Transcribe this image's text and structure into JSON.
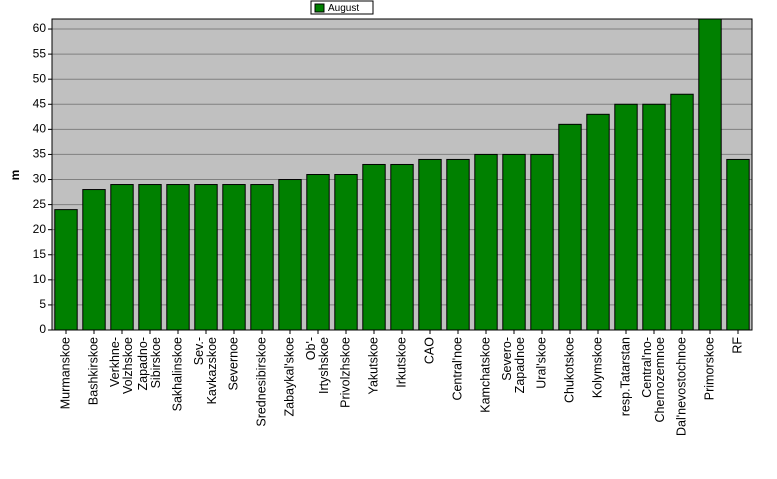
{
  "chart_data": {
    "type": "bar",
    "y_label": "m",
    "series": [
      {
        "name": "August",
        "color": "#008000",
        "values": [
          24,
          28,
          29,
          29,
          29,
          29,
          29,
          29,
          30,
          31,
          31,
          33,
          33,
          34,
          34,
          35,
          35,
          35,
          41,
          43,
          45,
          45,
          47,
          62,
          34
        ]
      }
    ],
    "categories": [
      "Murmanskoe",
      "Bashkirskoe",
      "Verkhne-\nVolzhskoe",
      "Zapadno-\nSibirskoe",
      "Sakhalinskoe",
      "Sev.-\nKavkazskoe",
      "Severnoe",
      "Srednesibirskoe",
      "Zabaykal'skoe",
      "Ob'-\nIrtyshskoe",
      "Privolzhskoe",
      "Yakutskoe",
      "Irkutskoe",
      "CAO",
      "Central'noe",
      "Kamchatskoe",
      "Severo-\nZapadnoe",
      "Ural'skoe",
      "Chukotskoe",
      "Kolymskoe",
      "resp.Tatarstan",
      "Central'no-\nChernozemnoe",
      "Dal'nevostochnoe",
      "Primorskoe",
      "RF"
    ],
    "ylim": [
      0,
      62
    ],
    "yticks": [
      0,
      5,
      10,
      15,
      20,
      25,
      30,
      35,
      40,
      45,
      50,
      55,
      60
    ],
    "grid": true,
    "legend": "top"
  }
}
